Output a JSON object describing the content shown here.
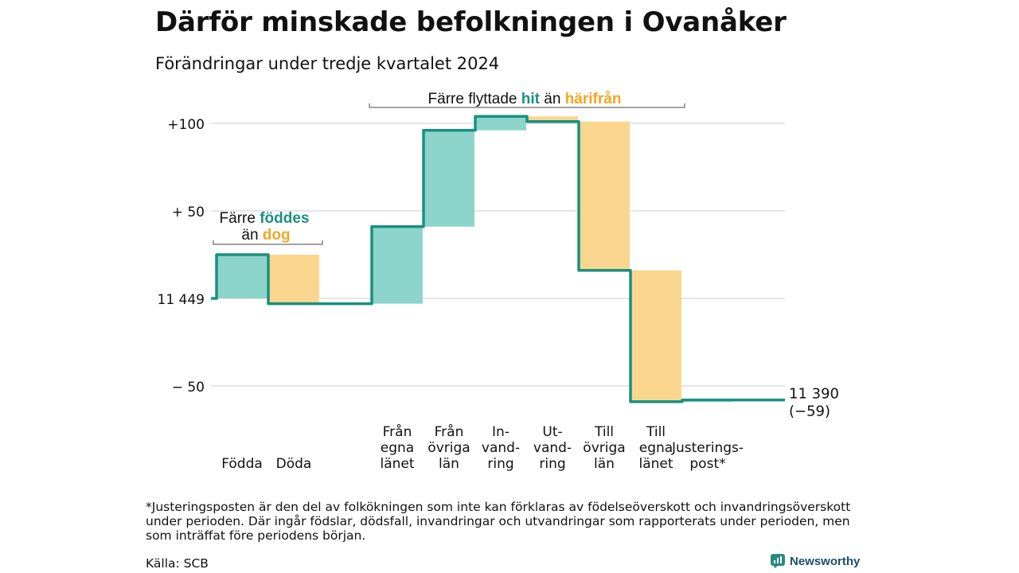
{
  "title": "Därför minskade befolkningen i Ovanåker",
  "subtitle": "Förändringar under tredje kvartalet 2024",
  "footnote": "*Justeringsposten är den del av folkökningen som inte kan förklaras av födelseöverskott och invandringsöverskott under perioden. Där ingår födslar, dödsfall, invandringar och utvandringar som rapporterats under perioden, men som inträffat före periodens början.",
  "source": "Källa: SCB",
  "brand": "Newsworthy",
  "colors": {
    "increase": "#8dd5ca",
    "decrease": "#fad68f",
    "line": "#1a9080",
    "accent_teal": "#1a9080",
    "accent_orange": "#f5a623",
    "grid": "#dddddd"
  },
  "chart_data": {
    "type": "waterfall",
    "start_value": 11449,
    "start_label": "11 449",
    "end_label": "11 390",
    "end_change_label": "(−59)",
    "ylim": [
      -60,
      104
    ],
    "yticks": [
      {
        "value": 100,
        "label": "+100"
      },
      {
        "value": 50,
        "label": "+ 50"
      },
      {
        "value": 0,
        "label": "11 449"
      },
      {
        "value": -50,
        "label": "−  50"
      }
    ],
    "categories": [
      {
        "label": [
          "Födda"
        ],
        "change": 25
      },
      {
        "label": [
          "Döda"
        ],
        "change": -28
      },
      {
        "label": [],
        "change": 0
      },
      {
        "label": [
          "Från",
          "egna",
          "länet"
        ],
        "change": 44
      },
      {
        "label": [
          "Från",
          "övriga",
          "län"
        ],
        "change": 55
      },
      {
        "label": [
          "In-",
          "vand-",
          "ring"
        ],
        "change": 8
      },
      {
        "label": [
          "Ut-",
          "vand-",
          "ring"
        ],
        "change": -3
      },
      {
        "label": [
          "Till",
          "övriga",
          "län"
        ],
        "change": -85
      },
      {
        "label": [
          "Till",
          "egna",
          "länet"
        ],
        "change": -75
      },
      {
        "label": [
          "Justerings-",
          "post*"
        ],
        "change": 1
      }
    ],
    "annotations": [
      {
        "prefix": "Färre",
        "highlight1": "föddes",
        "middle": "än",
        "highlight2": "dog"
      },
      {
        "prefix": "Färre flyttade",
        "highlight1": "hit",
        "middle": "än",
        "highlight2": "härifrån"
      }
    ]
  }
}
